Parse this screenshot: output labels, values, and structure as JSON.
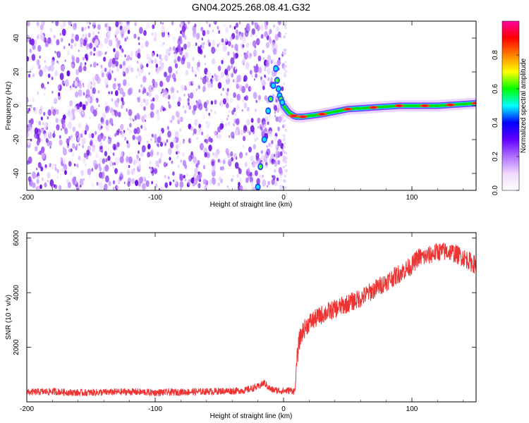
{
  "page": {
    "title": "GN04.2025.268.08.41.G32"
  },
  "chart_data": [
    {
      "type": "heatmap",
      "title": "GN04.2025.268.08.41.G32",
      "xlabel": "Height of straight line (km)",
      "ylabel": "Frequency (Hz)",
      "xlim": [
        -200,
        150
      ],
      "ylim": [
        -50,
        50
      ],
      "x_ticks": [
        -200,
        -100,
        0,
        100
      ],
      "y_ticks": [
        -40,
        -20,
        0,
        20,
        40
      ],
      "noise_region": {
        "x": [
          -200,
          0
        ],
        "y": [
          -50,
          50
        ],
        "color": "#8a2be2"
      },
      "signal_track": {
        "x": [
          -20,
          -18,
          -15,
          -12,
          -10,
          -8,
          -6,
          -5,
          -4,
          -3,
          -2,
          -1,
          0,
          2,
          4,
          6,
          8,
          10,
          15,
          20,
          30,
          40,
          50,
          60,
          70,
          80,
          90,
          100,
          110,
          120,
          130,
          140,
          150
        ],
        "y": [
          -48,
          -36,
          -20,
          -3,
          4,
          12,
          22,
          15,
          10,
          6,
          4,
          2,
          0,
          -2,
          -4,
          -5,
          -6,
          -6.5,
          -6.5,
          -6,
          -5,
          -3.5,
          -2,
          -1.5,
          -1,
          -0.5,
          0,
          0,
          0,
          0,
          0.5,
          1,
          1.5
        ]
      },
      "colorbar": {
        "label": "Normalized spectral amplitude",
        "range": [
          0,
          1
        ],
        "ticks": [
          "0.0",
          "0.2",
          "0.4",
          "0.6",
          "0.8"
        ],
        "tick_values": [
          0,
          0.2,
          0.4,
          0.6,
          0.8
        ],
        "colors": [
          "#ffffff",
          "#f0d8ff",
          "#b070ff",
          "#6000ff",
          "#0000ff",
          "#00ffff",
          "#00ff00",
          "#ffff00",
          "#ff8000",
          "#ff0000",
          "#ff00a0"
        ]
      }
    },
    {
      "type": "line",
      "xlabel": "Height of straight line (km)",
      "ylabel": "SNR (10 * v/v)",
      "xlim": [
        -200,
        150
      ],
      "ylim": [
        0,
        6200
      ],
      "x_ticks": [
        -200,
        -100,
        0,
        100
      ],
      "y_ticks": [
        2000,
        4000,
        6000
      ],
      "color": "#ee3333",
      "series": [
        {
          "x": [
            -200,
            -180,
            -160,
            -140,
            -120,
            -100,
            -80,
            -60,
            -40,
            -30,
            -20,
            -15,
            -10,
            -5,
            0,
            5,
            9,
            10,
            12,
            15,
            20,
            30,
            40,
            50,
            60,
            70,
            80,
            90,
            100,
            105,
            110,
            120,
            130,
            140,
            150
          ],
          "values": [
            350,
            380,
            330,
            350,
            370,
            340,
            360,
            380,
            400,
            420,
            550,
            700,
            450,
            420,
            400,
            420,
            400,
            1300,
            2200,
            2600,
            2900,
            3200,
            3400,
            3600,
            3800,
            4100,
            4400,
            4700,
            5000,
            5300,
            5300,
            5500,
            5500,
            5300,
            5000
          ]
        }
      ]
    }
  ]
}
